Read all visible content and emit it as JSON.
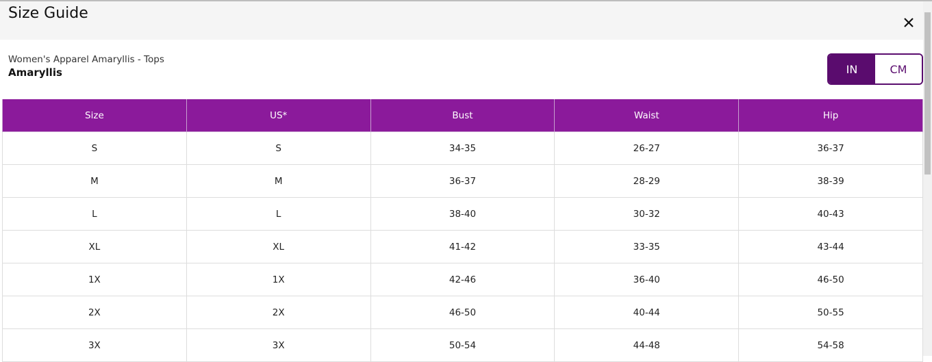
{
  "header": {
    "title": "Size Guide"
  },
  "product": {
    "category": "Women's Apparel Amaryllis - Tops",
    "name": "Amaryllis"
  },
  "units": [
    "IN",
    "CM"
  ],
  "table": {
    "columns": [
      "Size",
      "US*",
      "Bust",
      "Waist",
      "Hip"
    ],
    "rows": [
      [
        "S",
        "S",
        "34-35",
        "26-27",
        "36-37"
      ],
      [
        "M",
        "M",
        "36-37",
        "28-29",
        "38-39"
      ],
      [
        "L",
        "L",
        "38-40",
        "30-32",
        "40-43"
      ],
      [
        "XL",
        "XL",
        "41-42",
        "33-35",
        "43-44"
      ],
      [
        "1X",
        "1X",
        "42-46",
        "36-40",
        "46-50"
      ],
      [
        "2X",
        "2X",
        "46-50",
        "40-44",
        "50-55"
      ],
      [
        "3X",
        "3X",
        "50-54",
        "44-48",
        "54-58"
      ]
    ]
  }
}
